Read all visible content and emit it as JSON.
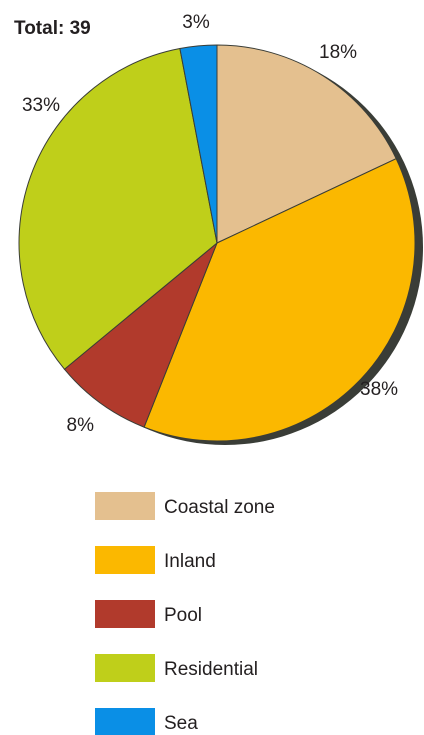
{
  "chart_data": {
    "type": "pie",
    "total_label": "Total: 39",
    "grid": false,
    "legend_position": "bottom",
    "slices": [
      {
        "label": "Coastal zone",
        "value": 18,
        "value_label": "18%",
        "color": "#e4c08f"
      },
      {
        "label": "Inland",
        "value": 38,
        "value_label": "38%",
        "color": "#fbb800"
      },
      {
        "label": "Pool",
        "value": 8,
        "value_label": "8%",
        "color": "#b13a2c"
      },
      {
        "label": "Residential",
        "value": 33,
        "value_label": "33%",
        "color": "#bfcf1a"
      },
      {
        "label": "Sea",
        "value": 3,
        "value_label": "3%",
        "color": "#0a8fe6"
      }
    ],
    "shadow_color": "#3a3d37"
  }
}
